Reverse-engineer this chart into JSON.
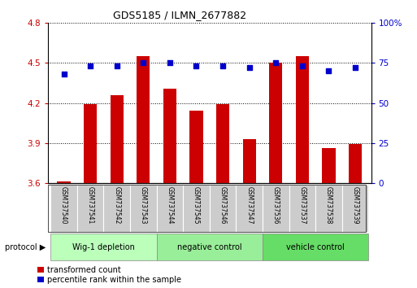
{
  "title": "GDS5185 / ILMN_2677882",
  "samples": [
    "GSM737540",
    "GSM737541",
    "GSM737542",
    "GSM737543",
    "GSM737544",
    "GSM737545",
    "GSM737546",
    "GSM737547",
    "GSM737536",
    "GSM737537",
    "GSM737538",
    "GSM737539"
  ],
  "red_values": [
    3.61,
    4.19,
    4.26,
    4.55,
    4.31,
    4.14,
    4.19,
    3.93,
    4.5,
    4.55,
    3.86,
    3.89
  ],
  "blue_values": [
    68,
    73,
    73,
    75,
    75,
    73,
    73,
    72,
    75,
    73,
    70,
    72
  ],
  "ylim_left": [
    3.6,
    4.8
  ],
  "ylim_right": [
    0,
    100
  ],
  "yticks_left": [
    3.6,
    3.9,
    4.2,
    4.5,
    4.8
  ],
  "yticks_right": [
    0,
    25,
    50,
    75,
    100
  ],
  "ytick_labels_left": [
    "3.6",
    "3.9",
    "4.2",
    "4.5",
    "4.8"
  ],
  "ytick_labels_right": [
    "0",
    "25",
    "50",
    "75",
    "100%"
  ],
  "groups": [
    {
      "label": "Wig-1 depletion",
      "start": 0,
      "end": 4,
      "color": "#bbffbb"
    },
    {
      "label": "negative control",
      "start": 4,
      "end": 8,
      "color": "#99ee99"
    },
    {
      "label": "vehicle control",
      "start": 8,
      "end": 12,
      "color": "#66dd66"
    }
  ],
  "bar_color": "#cc0000",
  "dot_color": "#0000cc",
  "bar_width": 0.5,
  "grid_color": "#000000",
  "tick_color_left": "#cc0000",
  "tick_color_right": "#0000cc",
  "legend_red_label": "transformed count",
  "legend_blue_label": "percentile rank within the sample",
  "protocol_label": "protocol",
  "sample_box_color": "#cccccc",
  "title_fontsize": 9,
  "tick_fontsize": 7.5,
  "sample_fontsize": 5.5,
  "group_fontsize": 7,
  "legend_fontsize": 7
}
